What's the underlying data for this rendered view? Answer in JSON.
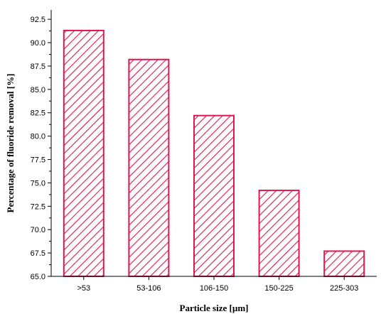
{
  "chart_data": {
    "type": "bar",
    "categories": [
      ">53",
      "53-106",
      "106-150",
      "150-225",
      "225-303"
    ],
    "values": [
      91.3,
      88.2,
      82.2,
      74.2,
      67.7
    ],
    "title": "",
    "xlabel": "Particle size [µm]",
    "ylabel": "Percentage of fluoride removal [%]",
    "ylim": [
      65.0,
      93.5
    ],
    "yticks": [
      "65.0",
      "67.5",
      "70.0",
      "72.5",
      "75.0",
      "77.5",
      "80.0",
      "82.5",
      "85.0",
      "87.5",
      "90.0",
      "92.5"
    ],
    "grid": false,
    "bar_color": "#e0164f",
    "bar_fill": "diagonal-hatch"
  }
}
